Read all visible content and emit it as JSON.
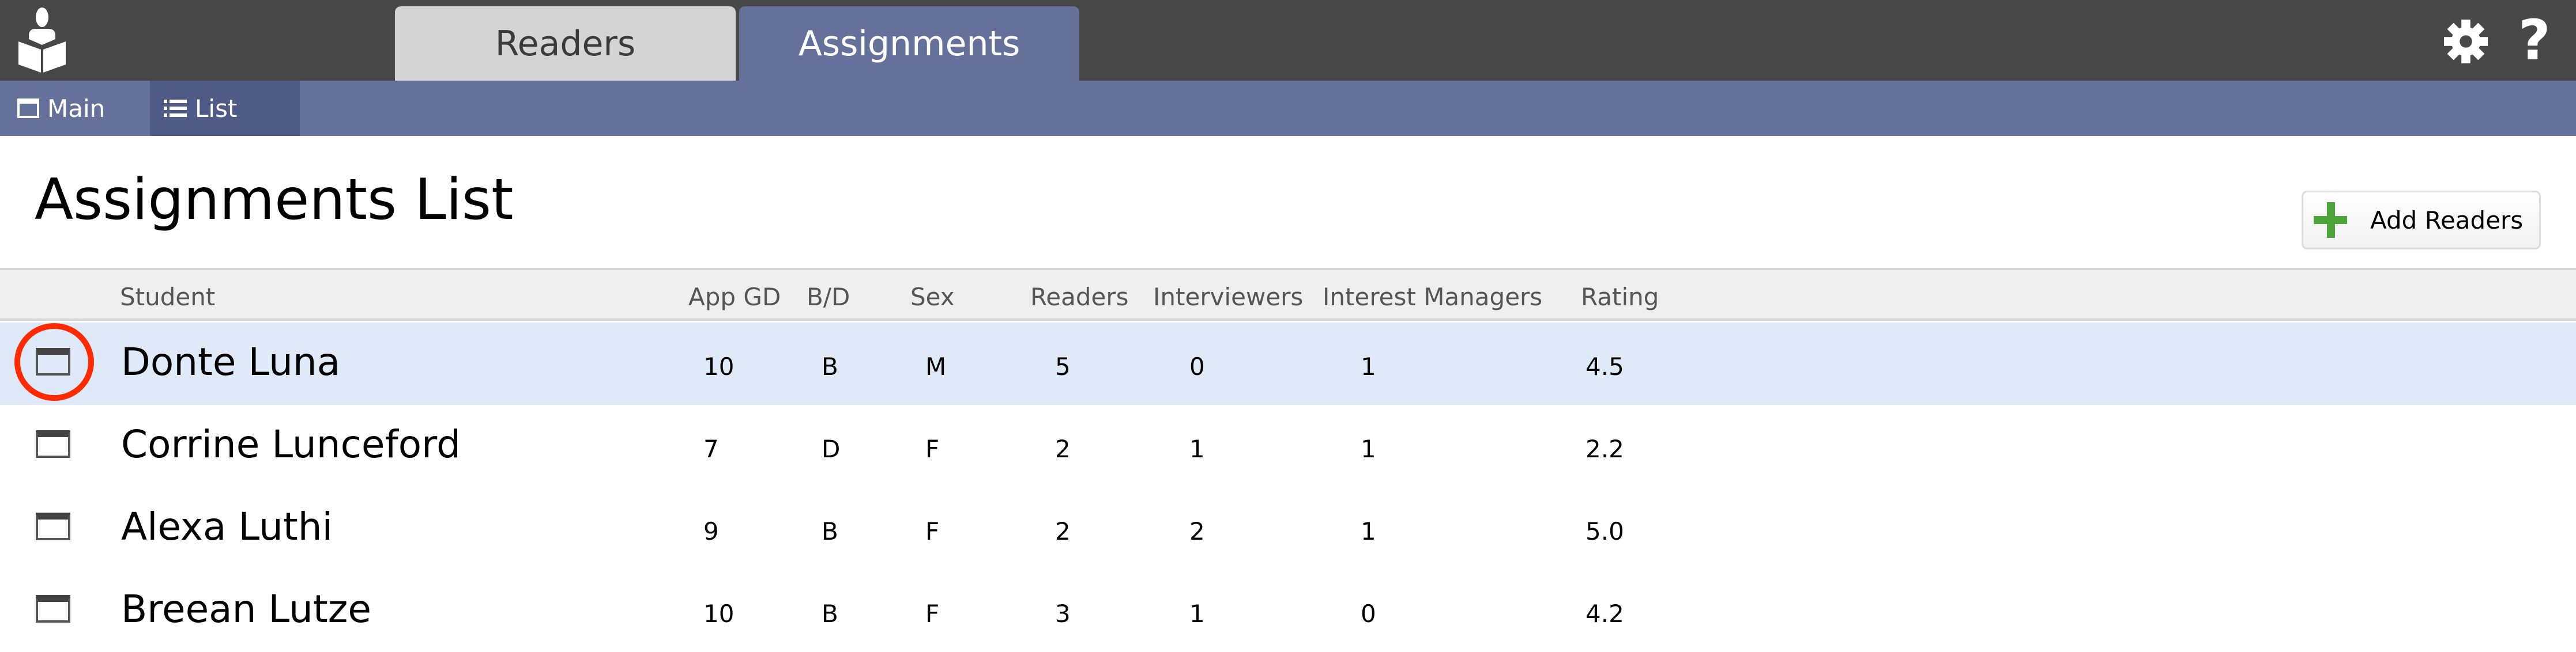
{
  "app": {
    "logo_icon": "reader-book-icon",
    "tabs": [
      {
        "label": "Readers",
        "active": false
      },
      {
        "label": "Assignments",
        "active": true
      }
    ],
    "settings_icon": "gear-icon",
    "help_label": "?"
  },
  "subnav": {
    "items": [
      {
        "label": "Main",
        "icon": "window-icon"
      },
      {
        "label": "List",
        "icon": "list-icon",
        "active": true
      }
    ]
  },
  "page": {
    "title": "Assignments List",
    "add_button_label": "Add Readers"
  },
  "table": {
    "columns": [
      "Student",
      "App GD",
      "B/D",
      "Sex",
      "Readers",
      "Interviewers",
      "Interest Managers",
      "Rating"
    ],
    "rows": [
      {
        "student": "Donte Luna",
        "app_gd": "10",
        "bd": "B",
        "sex": "M",
        "readers": "5",
        "interviewers": "0",
        "interest_managers": "1",
        "rating": "4.5",
        "selected": true
      },
      {
        "student": "Corrine Lunceford",
        "app_gd": "7",
        "bd": "D",
        "sex": "F",
        "readers": "2",
        "interviewers": "1",
        "interest_managers": "1",
        "rating": "2.2"
      },
      {
        "student": "Alexa Luthi",
        "app_gd": "9",
        "bd": "B",
        "sex": "F",
        "readers": "2",
        "interviewers": "2",
        "interest_managers": "1",
        "rating": "5.0"
      },
      {
        "student": "Breean Lutze",
        "app_gd": "10",
        "bd": "B",
        "sex": "F",
        "readers": "3",
        "interviewers": "1",
        "interest_managers": "0",
        "rating": "4.2"
      }
    ]
  },
  "colors": {
    "topbar": "#474747",
    "accent": "#65709b",
    "selected_row": "#dfe9f8",
    "highlight_ring": "#ff2a00",
    "add_icon": "#4ea53a"
  }
}
